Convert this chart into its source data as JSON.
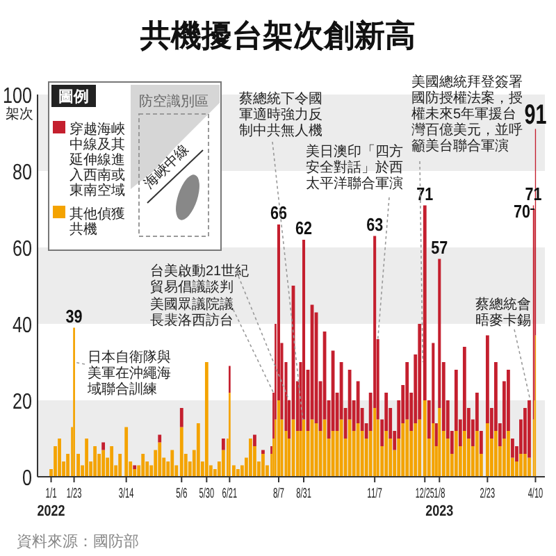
{
  "chart_data": {
    "type": "bar",
    "title": "共機擾台架次創新高",
    "ylabel": "架次",
    "legend_title": "圖例",
    "legend": "top left",
    "stacked": true,
    "x": [
      "2022-01-01",
      "2022-01-05",
      "2022-01-09",
      "2022-01-13",
      "2022-01-17",
      "2022-01-21",
      "2022-01-23",
      "2022-01-27",
      "2022-01-31",
      "2022-02-04",
      "2022-02-08",
      "2022-02-12",
      "2022-02-16",
      "2022-02-20",
      "2022-02-24",
      "2022-02-28",
      "2022-03-04",
      "2022-03-08",
      "2022-03-14",
      "2022-03-18",
      "2022-03-22",
      "2022-03-26",
      "2022-03-30",
      "2022-04-03",
      "2022-04-07",
      "2022-04-11",
      "2022-04-15",
      "2022-04-19",
      "2022-04-23",
      "2022-04-27",
      "2022-05-01",
      "2022-05-06",
      "2022-05-10",
      "2022-05-14",
      "2022-05-18",
      "2022-05-22",
      "2022-05-26",
      "2022-05-30",
      "2022-06-03",
      "2022-06-07",
      "2022-06-11",
      "2022-06-15",
      "2022-06-19",
      "2022-06-21",
      "2022-06-25",
      "2022-06-29",
      "2022-07-03",
      "2022-07-07",
      "2022-07-11",
      "2022-07-15",
      "2022-07-19",
      "2022-07-23",
      "2022-07-27",
      "2022-07-31",
      "2022-08-02",
      "2022-08-04",
      "2022-08-07",
      "2022-08-10",
      "2022-08-14",
      "2022-08-17",
      "2022-08-21",
      "2022-08-25",
      "2022-08-28",
      "2022-08-31",
      "2022-09-04",
      "2022-09-08",
      "2022-09-12",
      "2022-09-16",
      "2022-09-20",
      "2022-09-24",
      "2022-09-28",
      "2022-10-02",
      "2022-10-06",
      "2022-10-10",
      "2022-10-14",
      "2022-10-18",
      "2022-10-22",
      "2022-10-26",
      "2022-10-30",
      "2022-11-03",
      "2022-11-07",
      "2022-11-10",
      "2022-11-14",
      "2022-11-18",
      "2022-11-22",
      "2022-11-26",
      "2022-11-30",
      "2022-12-04",
      "2022-12-08",
      "2022-12-12",
      "2022-12-16",
      "2022-12-20",
      "2022-12-25",
      "2022-12-29",
      "2023-01-02",
      "2023-01-05",
      "2023-01-08",
      "2023-01-12",
      "2023-01-16",
      "2023-01-20",
      "2023-01-24",
      "2023-01-28",
      "2023-02-01",
      "2023-02-05",
      "2023-02-09",
      "2023-02-13",
      "2023-02-17",
      "2023-02-23",
      "2023-02-27",
      "2023-03-03",
      "2023-03-07",
      "2023-03-11",
      "2023-03-15",
      "2023-03-19",
      "2023-03-23",
      "2023-03-27",
      "2023-03-31",
      "2023-04-04",
      "2023-04-08",
      "2023-04-09",
      "2023-04-10"
    ],
    "series": [
      {
        "name": "其他偵獲共機",
        "color": "#f4a300",
        "values": [
          2,
          8,
          10,
          4,
          6,
          13,
          39,
          6,
          3,
          10,
          4,
          8,
          6,
          7,
          5,
          8,
          3,
          6,
          13,
          4,
          2,
          3,
          6,
          4,
          3,
          7,
          9,
          5,
          4,
          7,
          3,
          13,
          6,
          4,
          7,
          14,
          4,
          30,
          3,
          2,
          4,
          7,
          10,
          22,
          3,
          2,
          3,
          5,
          10,
          8,
          4,
          6,
          3,
          6,
          10,
          15,
          20,
          15,
          12,
          10,
          15,
          12,
          12,
          15,
          12,
          15,
          14,
          12,
          15,
          10,
          12,
          12,
          15,
          10,
          15,
          12,
          14,
          12,
          10,
          12,
          18,
          15,
          8,
          12,
          10,
          7,
          10,
          14,
          15,
          12,
          14,
          15,
          20,
          10,
          14,
          8,
          18,
          12,
          10,
          6,
          12,
          8,
          12,
          10,
          8,
          12,
          6,
          14,
          10,
          12,
          8,
          10,
          12,
          5,
          4,
          6,
          6,
          5,
          15,
          20,
          37
        ]
      },
      {
        "name": "穿越海峽中線及其延伸線進入西南或東南空域",
        "color": "#c41f2e",
        "values": [
          0,
          0,
          0,
          0,
          0,
          0,
          0,
          0,
          0,
          0,
          0,
          0,
          0,
          2,
          0,
          0,
          0,
          0,
          0,
          0,
          1,
          0,
          0,
          0,
          0,
          0,
          2,
          0,
          0,
          0,
          0,
          5,
          0,
          0,
          0,
          0,
          0,
          0,
          0,
          0,
          0,
          3,
          0,
          7,
          0,
          0,
          0,
          0,
          0,
          3,
          0,
          1,
          0,
          2,
          12,
          25,
          46,
          20,
          18,
          10,
          35,
          13,
          18,
          47,
          16,
          30,
          29,
          13,
          23,
          10,
          21,
          10,
          15,
          8,
          13,
          8,
          11,
          6,
          4,
          10,
          45,
          21,
          7,
          10,
          8,
          5,
          10,
          10,
          15,
          10,
          18,
          25,
          51,
          10,
          21,
          6,
          39,
          18,
          10,
          6,
          16,
          7,
          22,
          8,
          7,
          10,
          6,
          23,
          8,
          18,
          6,
          15,
          16,
          5,
          4,
          9,
          12,
          15,
          56,
          50,
          54
        ]
      }
    ],
    "totals": [
      null,
      null,
      null,
      null,
      null,
      null,
      "39",
      null,
      null,
      null,
      null,
      null,
      null,
      null,
      null,
      null,
      null,
      null,
      null,
      null,
      null,
      null,
      null,
      null,
      null,
      null,
      null,
      null,
      null,
      null,
      null,
      null,
      null,
      null,
      null,
      null,
      null,
      null,
      null,
      null,
      null,
      null,
      null,
      null,
      null,
      null,
      null,
      null,
      null,
      null,
      null,
      null,
      null,
      null,
      null,
      null,
      "66",
      null,
      null,
      null,
      null,
      null,
      null,
      "62",
      null,
      null,
      null,
      null,
      null,
      null,
      null,
      null,
      null,
      null,
      null,
      null,
      null,
      null,
      null,
      null,
      "63",
      null,
      null,
      null,
      null,
      null,
      null,
      null,
      null,
      null,
      null,
      null,
      "71",
      null,
      null,
      null,
      "57",
      null,
      null,
      null,
      null,
      null,
      null,
      null,
      null,
      null,
      null,
      null,
      null,
      null,
      null,
      null,
      null,
      null,
      null,
      null,
      null,
      null,
      "71",
      "70",
      "91"
    ],
    "xlim": [
      "2021-12-19",
      "2023-04-19"
    ],
    "xticks": [
      {
        "value": "2022-01-01",
        "label": "1/1\n2022"
      },
      {
        "value": "2022-01-23",
        "label": "1/23"
      },
      {
        "value": "2022-03-14",
        "label": "3/14"
      },
      {
        "value": "2022-05-06",
        "label": "5/6"
      },
      {
        "value": "2022-05-30",
        "label": "5/30"
      },
      {
        "value": "2022-06-21",
        "label": "6/21"
      },
      {
        "value": "2022-08-07",
        "label": "8/7"
      },
      {
        "value": "2022-08-31",
        "label": "8/31"
      },
      {
        "value": "2022-11-07",
        "label": "11/7"
      },
      {
        "value": "2022-12-25",
        "label": "12/25"
      },
      {
        "value": "2023-01-08",
        "label": "1/8\n2023"
      },
      {
        "value": "2023-02-23",
        "label": "2/23"
      },
      {
        "value": "2023-04-10",
        "label": "4/10"
      }
    ],
    "ylim": [
      0,
      100
    ],
    "yticks": [
      0,
      20,
      40,
      60,
      80,
      100
    ],
    "bands": [
      {
        "axis": "y",
        "from": 0,
        "to": 20,
        "color": "#ececec"
      },
      {
        "axis": "y",
        "from": 40,
        "to": 60,
        "color": "#ececec"
      },
      {
        "axis": "y",
        "from": 80,
        "to": 100,
        "color": "#ececec"
      }
    ],
    "annotations": [
      {
        "text": "日本自衛隊與美軍在沖繩海域聯合訓練",
        "x": "2022-01-23",
        "y": 30
      },
      {
        "text": "台美啟動21世紀貿易倡議談判",
        "x": "2022-08-17",
        "y": 20
      },
      {
        "text": "美國眾議院議長裴洛西訪台",
        "x": "2022-08-02",
        "y": 22
      },
      {
        "text": "蔡總統下令國軍適時強力反制中共無人機",
        "x": "2022-08-30",
        "y": 15
      },
      {
        "text": "美日澳印「四方安全對話」於西太平洋聯合軍演",
        "x": "2022-11-10",
        "y": 36
      },
      {
        "text": "美國總統拜登簽署國防授權法案，授權未來5年軍援台灣百億美元，並呼籲美台聯合軍演",
        "x": "2022-12-23",
        "y": 30
      },
      {
        "text": "蔡總統會晤麥卡錫",
        "x": "2023-04-05",
        "y": 20
      },
      "資料來源：國防部",
      "防空識別區",
      "海峽中線"
    ]
  }
}
